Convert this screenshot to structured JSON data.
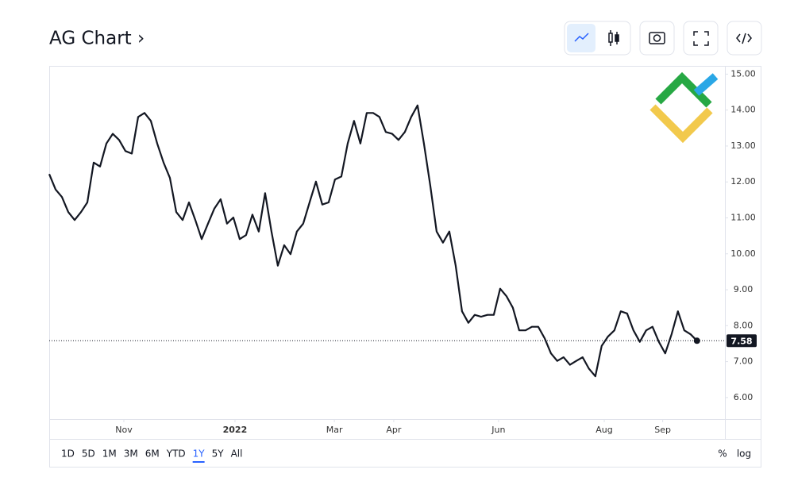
{
  "ui": {
    "title": "AG Chart ›",
    "ranges": [
      "1D",
      "5D",
      "1M",
      "3M",
      "6M",
      "YTD",
      "1Y",
      "5Y",
      "All"
    ],
    "active_range": 6,
    "percent": "%",
    "log": "log"
  },
  "chart_data": {
    "type": "line",
    "series": [
      {
        "color": "#131722",
        "x": [
          0,
          1,
          2,
          3,
          4,
          5,
          6,
          7,
          8,
          9,
          10,
          11,
          12,
          13,
          14,
          15,
          16,
          17,
          18,
          19,
          20,
          21,
          22,
          23,
          24,
          25,
          26,
          27,
          28,
          29,
          30,
          31,
          32,
          33,
          34,
          35,
          36,
          37,
          38,
          39,
          40,
          41,
          42,
          43,
          44,
          45,
          46,
          47,
          48,
          49,
          50,
          51,
          52,
          53,
          54,
          55,
          56,
          57,
          58,
          59,
          60,
          61,
          62,
          63,
          64,
          65,
          66,
          67,
          68,
          69,
          70,
          71,
          72,
          73,
          74,
          75,
          76,
          77,
          78,
          79,
          80,
          81,
          82,
          83,
          84,
          85,
          86,
          87,
          88,
          89,
          90,
          91,
          92,
          93,
          94,
          95,
          96,
          97,
          98,
          99,
          100,
          101,
          102
        ],
        "values": [
          12.22,
          11.79,
          11.58,
          11.16,
          10.94,
          11.16,
          11.43,
          12.54,
          12.43,
          13.07,
          13.34,
          13.17,
          12.86,
          12.79,
          13.81,
          13.92,
          13.7,
          13.07,
          12.54,
          12.11,
          11.16,
          10.94,
          11.43,
          10.94,
          10.41,
          10.84,
          11.26,
          11.52,
          10.84,
          11.01,
          10.41,
          10.52,
          11.09,
          10.62,
          11.69,
          10.62,
          9.67,
          10.24,
          9.99,
          10.62,
          10.84,
          11.43,
          12.01,
          11.37,
          11.43,
          12.07,
          12.15,
          13.07,
          13.7,
          13.07,
          13.92,
          13.92,
          13.81,
          13.39,
          13.34,
          13.17,
          13.39,
          13.81,
          14.13,
          13.07,
          11.9,
          10.62,
          10.31,
          10.62,
          9.67,
          8.4,
          8.08,
          8.3,
          8.25,
          8.3,
          8.3,
          9.03,
          8.82,
          8.5,
          7.87,
          7.87,
          7.97,
          7.97,
          7.65,
          7.23,
          7.02,
          7.12,
          6.91,
          7.02,
          7.12,
          6.8,
          6.59,
          7.44,
          7.7,
          7.87,
          8.4,
          8.34,
          7.87,
          7.55,
          7.87,
          7.97,
          7.55,
          7.23,
          7.76,
          8.4,
          7.87,
          7.76,
          7.58
        ]
      }
    ],
    "xlim": [
      0,
      106.4
    ],
    "xticks": [
      {
        "value": 11.75,
        "label": "Nov"
      },
      {
        "value": 29.25,
        "label": "2022"
      },
      {
        "value": 44.9,
        "label": "Mar"
      },
      {
        "value": 54.25,
        "label": "Apr"
      },
      {
        "value": 70.75,
        "label": "Jun"
      },
      {
        "value": 87.4,
        "label": "Aug"
      },
      {
        "value": 96.6,
        "label": "Sep"
      }
    ],
    "ylim": [
      5.4,
      15.23
    ],
    "yticks": [
      {
        "value": 6,
        "label": "6.00"
      },
      {
        "value": 7,
        "label": "7.00"
      },
      {
        "value": 8,
        "label": "8.00"
      },
      {
        "value": 9,
        "label": "9.00"
      },
      {
        "value": 10,
        "label": "10.00"
      },
      {
        "value": 11,
        "label": "11.00"
      },
      {
        "value": 12,
        "label": "12.00"
      },
      {
        "value": 13,
        "label": "13.00"
      },
      {
        "value": 14,
        "label": "14.00"
      },
      {
        "value": 15,
        "label": "15.00"
      }
    ],
    "grid": false
  }
}
